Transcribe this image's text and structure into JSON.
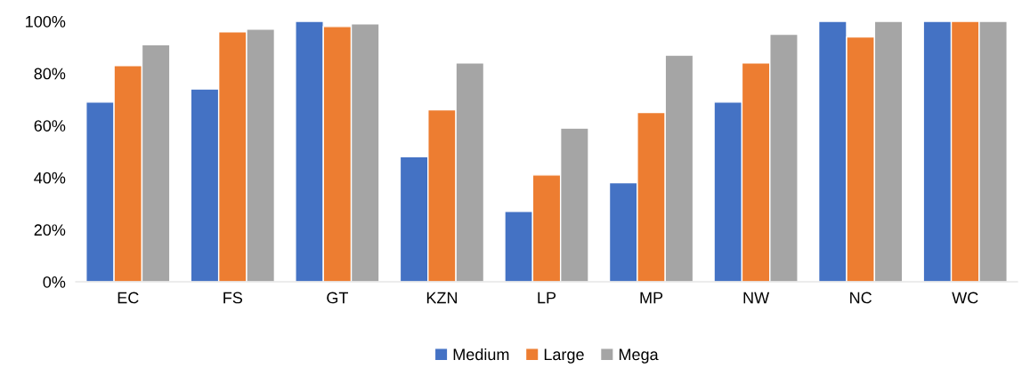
{
  "chart_data": {
    "type": "bar",
    "categories": [
      "EC",
      "FS",
      "GT",
      "KZN",
      "LP",
      "MP",
      "NW",
      "NC",
      "WC"
    ],
    "series": [
      {
        "name": "Medium",
        "color": "#4472c4",
        "values": [
          69,
          74,
          100,
          48,
          27,
          38,
          69,
          100,
          100
        ]
      },
      {
        "name": "Large",
        "color": "#ed7d31",
        "values": [
          83,
          96,
          98,
          66,
          41,
          65,
          84,
          94,
          100
        ]
      },
      {
        "name": "Mega",
        "color": "#a5a5a5",
        "values": [
          91,
          97,
          99,
          84,
          59,
          87,
          95,
          100,
          100
        ]
      }
    ],
    "ylim": [
      0,
      100
    ],
    "yticks": [
      {
        "value": 0,
        "label": "0%"
      },
      {
        "value": 20,
        "label": "20%"
      },
      {
        "value": 40,
        "label": "40%"
      },
      {
        "value": 60,
        "label": "60%"
      },
      {
        "value": 80,
        "label": "80%"
      },
      {
        "value": 100,
        "label": "100%"
      }
    ],
    "grid": false,
    "legend": "bottom"
  }
}
